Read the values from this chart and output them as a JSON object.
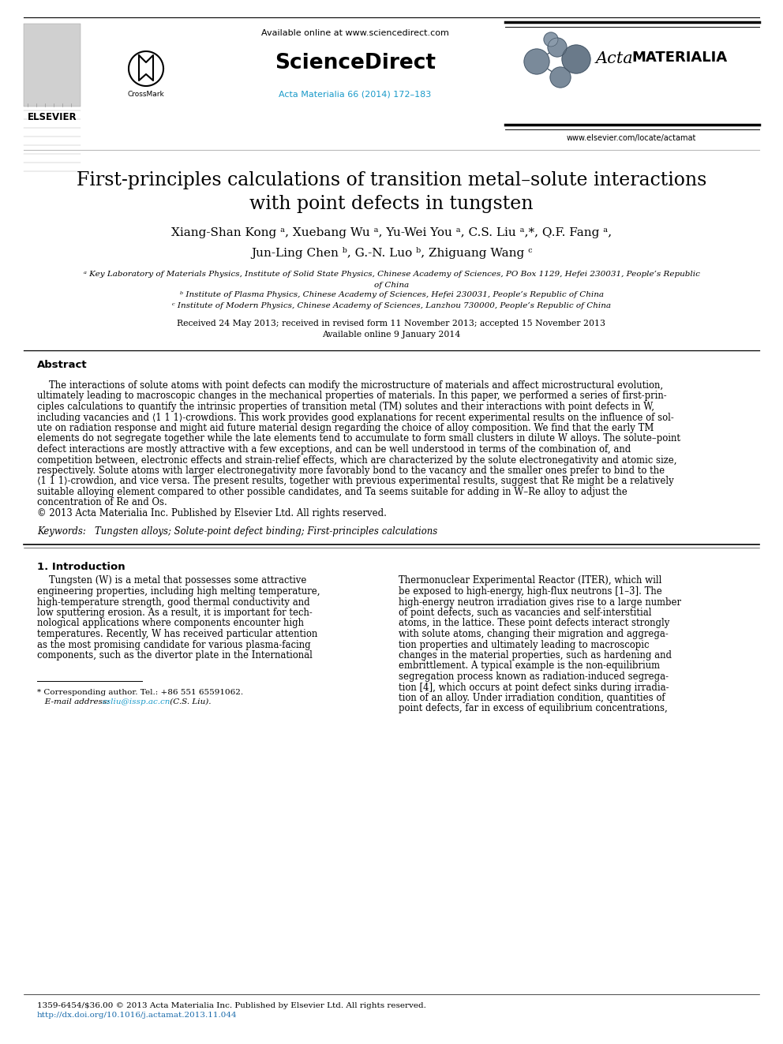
{
  "title_line1": "First-principles calculations of transition metal–solute interactions",
  "title_line2": "with point defects in tungsten",
  "author_line1": "Xiang-Shan Kong",
  "author_line1b": ", Xuebang Wu",
  "author_line1c": ", Yu-Wei You",
  "author_line1d": ", C.S. Liu",
  "author_line1e": ", Q.F. Fang",
  "author_line1f": ",",
  "author_line2a": "Jun-Ling Chen",
  "author_line2b": ", G.-N. Luo",
  "author_line2c": ", Zhiguang Wang",
  "affil_a": "ᵃ Key Laboratory of Materials Physics, Institute of Solid State Physics, Chinese Academy of Sciences, PO Box 1129, Hefei 230031, People’s Republic",
  "affil_a2": "of China",
  "affil_b": "ᵇ Institute of Plasma Physics, Chinese Academy of Sciences, Hefei 230031, People’s Republic of China",
  "affil_c": "ᶜ Institute of Modern Physics, Chinese Academy of Sciences, Lanzhou 730000, People’s Republic of China",
  "received": "Received 24 May 2013; received in revised form 11 November 2013; accepted 15 November 2013",
  "available": "Available online 9 January 2014",
  "abstract_title": "Abstract",
  "abstract_lines": [
    "    The interactions of solute atoms with point defects can modify the microstructure of materials and affect microstructural evolution,",
    "ultimately leading to macroscopic changes in the mechanical properties of materials. In this paper, we performed a series of first-prin-",
    "ciples calculations to quantify the intrinsic properties of transition metal (TM) solutes and their interactions with point defects in W,",
    "including vacancies and ⟨1 1 1⟩-crowdions. This work provides good explanations for recent experimental results on the influence of sol-",
    "ute on radiation response and might aid future material design regarding the choice of alloy composition. We find that the early TM",
    "elements do not segregate together while the late elements tend to accumulate to form small clusters in dilute W alloys. The solute–point",
    "defect interactions are mostly attractive with a few exceptions, and can be well understood in terms of the combination of, and",
    "competition between, electronic effects and strain-relief effects, which are characterized by the solute electronegativity and atomic size,",
    "respectively. Solute atoms with larger electronegativity more favorably bond to the vacancy and the smaller ones prefer to bind to the",
    "⟨1 1 1⟩-crowdion, and vice versa. The present results, together with previous experimental results, suggest that Re might be a relatively",
    "suitable alloying element compared to other possible candidates, and Ta seems suitable for adding in W–Re alloy to adjust the",
    "concentration of Re and Os.",
    "© 2013 Acta Materialia Inc. Published by Elsevier Ltd. All rights reserved."
  ],
  "keywords": "Keywords:   Tungsten alloys; Solute-point defect binding; First-principles calculations",
  "section_title": "1. Introduction",
  "intro_left_lines": [
    "    Tungsten (W) is a metal that possesses some attractive",
    "engineering properties, including high melting temperature,",
    "high-temperature strength, good thermal conductivity and",
    "low sputtering erosion. As a result, it is important for tech-",
    "nological applications where components encounter high",
    "temperatures. Recently, W has received particular attention",
    "as the most promising candidate for various plasma-facing",
    "components, such as the divertor plate in the International"
  ],
  "intro_right_lines": [
    "Thermonuclear Experimental Reactor (ITER), which will",
    "be exposed to high-energy, high-flux neutrons [1–3]. The",
    "high-energy neutron irradiation gives rise to a large number",
    "of point defects, such as vacancies and self-interstitial",
    "atoms, in the lattice. These point defects interact strongly",
    "with solute atoms, changing their migration and aggrega-",
    "tion properties and ultimately leading to macroscopic",
    "changes in the material properties, such as hardening and",
    "embrittlement. A typical example is the non-equilibrium",
    "segregation process known as radiation-induced segrega-",
    "tion [4], which occurs at point defect sinks during irradia-",
    "tion of an alloy. Under irradiation condition, quantities of",
    "point defects, far in excess of equilibrium concentrations,"
  ],
  "footnote1": "* Corresponding author. Tel.: +86 551 65591062.",
  "footnote2a": "   E-mail address: ",
  "footnote2b": "csliu@issp.ac.cn",
  "footnote2c": " (C.S. Liu).",
  "footer1": "1359-6454/$36.00 © 2013 Acta Materialia Inc. Published by Elsevier Ltd. All rights reserved.",
  "footer2": "http://dx.doi.org/10.1016/j.actamat.2013.11.044",
  "journal_ref": "Acta Materialia 66 (2014) 172–183",
  "available_online": "Available online at www.sciencedirect.com",
  "sciencedirect": "ScienceDirect",
  "elsevier_url": "www.elsevier.com/locate/actamat",
  "elsevier_label": "ELSEVIER",
  "crossmark": "CrossMark",
  "acta": "Acta",
  "materialia": "MATERIALIA",
  "bg_color": "#ffffff",
  "black": "#000000",
  "cyan": "#1a9ac9",
  "blue_link": "#1a6bab",
  "gray_mid": "#666666"
}
